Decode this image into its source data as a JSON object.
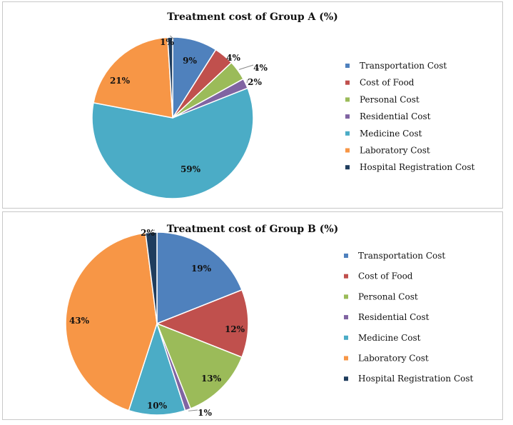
{
  "chart_data": [
    {
      "type": "pie",
      "title": "Treatment cost of Group A (%)",
      "categories": [
        "Transportation Cost",
        "Cost of Food",
        "Personal Cost",
        "Residential Cost",
        "Medicine Cost",
        "Laboratory Cost",
        "Hospital Registration Cost"
      ],
      "values": [
        9,
        4,
        4,
        2,
        59,
        21,
        1
      ],
      "labels": [
        "9%",
        "4%",
        "4%",
        "2%",
        "59%",
        "21%",
        "1%"
      ],
      "colors": [
        "#4f81bd",
        "#c0504d",
        "#9bbb59",
        "#8064a2",
        "#4bacc6",
        "#f79646",
        "#1f3d5e"
      ],
      "legend": "right"
    },
    {
      "type": "pie",
      "title": "Treatment cost of Group B (%)",
      "categories": [
        "Transportation Cost",
        "Cost of Food",
        "Personal Cost",
        "Residential Cost",
        "Medicine Cost",
        "Laboratory Cost",
        "Hospital Registration Cost"
      ],
      "values": [
        19,
        12,
        13,
        1,
        10,
        43,
        2
      ],
      "labels": [
        "19%",
        "12%",
        "13%",
        "1%",
        "10%",
        "43%",
        "2%"
      ],
      "colors": [
        "#4f81bd",
        "#c0504d",
        "#9bbb59",
        "#8064a2",
        "#4bacc6",
        "#f79646",
        "#1f3d5e"
      ],
      "legend": "right"
    }
  ]
}
